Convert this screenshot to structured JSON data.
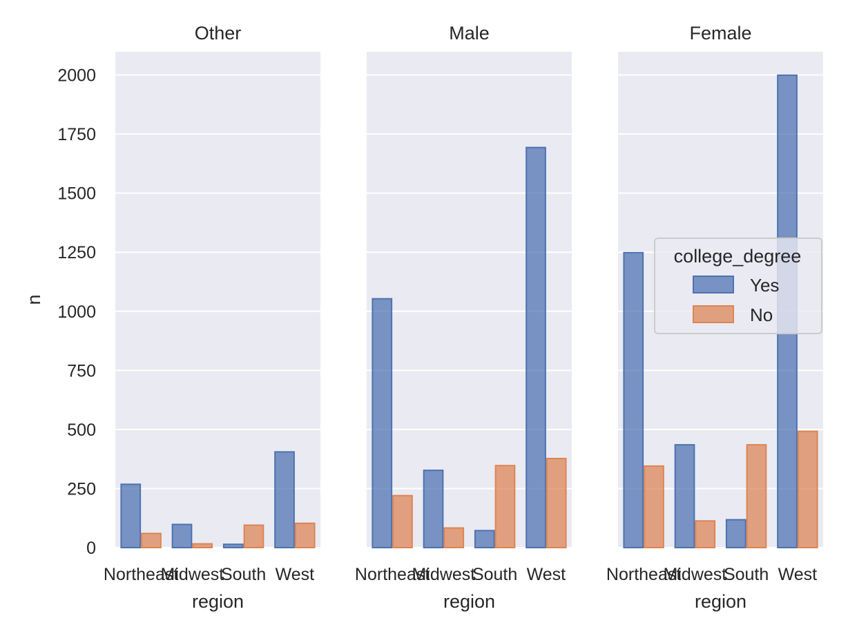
{
  "chart_data": {
    "type": "bar",
    "facet_variable": "gender",
    "facets": [
      {
        "title": "Other",
        "categories": [
          "Northeast",
          "Midwest",
          "South",
          "West"
        ],
        "series": [
          {
            "name": "Yes",
            "values": [
              268,
              98,
              14,
              405
            ]
          },
          {
            "name": "No",
            "values": [
              60,
              16,
              95,
              103
            ]
          }
        ]
      },
      {
        "title": "Male",
        "categories": [
          "Northeast",
          "Midwest",
          "South",
          "West"
        ],
        "series": [
          {
            "name": "Yes",
            "values": [
              1053,
              327,
              72,
              1693
            ]
          },
          {
            "name": "No",
            "values": [
              220,
              83,
              347,
              377
            ]
          }
        ]
      },
      {
        "title": "Female",
        "categories": [
          "Northeast",
          "Midwest",
          "South",
          "West"
        ],
        "series": [
          {
            "name": "Yes",
            "values": [
              1248,
              435,
              118,
              1999
            ]
          },
          {
            "name": "No",
            "values": [
              345,
              113,
              435,
              492
            ]
          }
        ]
      }
    ],
    "xlabel": "region",
    "ylabel": "n",
    "ylim": [
      0,
      2098
    ],
    "yticks": [
      0,
      250,
      500,
      750,
      1000,
      1250,
      1500,
      1750,
      2000
    ],
    "legend": {
      "title": "college_degree",
      "entries": [
        "Yes",
        "No"
      ],
      "placement": "right"
    },
    "colors": {
      "Yes": "#4c72b0",
      "No": "#dd8452"
    },
    "grid": true,
    "sharey": true
  }
}
